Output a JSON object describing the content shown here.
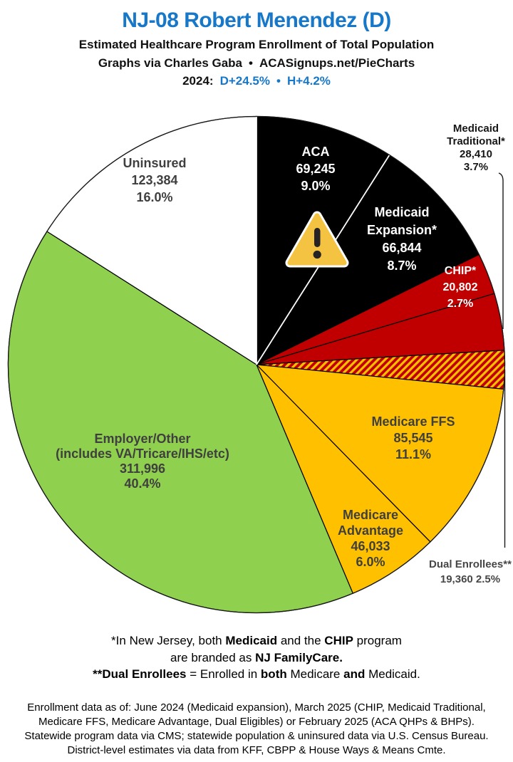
{
  "header": {
    "title": "NJ-08 Robert Menendez (D)",
    "subtitle": "Estimated Healthcare Program Enrollment of Total Population",
    "credit": {
      "text": "Graphs via Charles Gaba",
      "bullet": "•",
      "site": "ACASignups.net/PieCharts"
    },
    "partisan": {
      "year": "2024:",
      "d_lean": "D+24.5%",
      "bullet": "•",
      "h_lean": "H+4.2%"
    }
  },
  "colors": {
    "accent_blue": "#1777c8",
    "slice_black": "#000000",
    "slice_red": "#c00000",
    "slice_orange": "#ffc000",
    "slice_green": "#90d04f",
    "slice_white": "#ffffff",
    "hatch_base": "#c00000",
    "hatch_stripe": "#ffc000",
    "label_gray": "#3f3f3f",
    "warning_yellow": "#f5c342",
    "warning_dark": "#262327"
  },
  "chart_data": {
    "type": "pie",
    "title": "Estimated Healthcare Program Enrollment of Total Population",
    "district": "NJ-08",
    "representative": "Robert Menendez (D)",
    "start_angle_deg": 0,
    "direction": "clockwise",
    "legend_position": "on-slice",
    "slices": [
      {
        "key": "aca",
        "label": "ACA",
        "value": 69245,
        "pct": 9.0,
        "color": "#000000",
        "text_color": "#ffffff"
      },
      {
        "key": "medicaid_expansion",
        "label": "Medicaid Expansion*",
        "value": 66844,
        "pct": 8.7,
        "color": "#000000",
        "text_color": "#ffffff"
      },
      {
        "key": "chip",
        "label": "CHIP*",
        "value": 20802,
        "pct": 2.7,
        "color": "#c00000",
        "text_color": "#ffffff"
      },
      {
        "key": "medicaid_traditional",
        "label": "Medicaid Traditional*",
        "value": 28410,
        "pct": 3.7,
        "color": "#c00000",
        "text_color": "#161616"
      },
      {
        "key": "dual_enrollees",
        "label": "Dual Enrollees**",
        "value": 19360,
        "pct": 2.5,
        "color": "hatch",
        "text_color": "#474747"
      },
      {
        "key": "medicare_ffs",
        "label": "Medicare FFS",
        "value": 85545,
        "pct": 11.1,
        "color": "#ffc000",
        "text_color": "#3f3f3f"
      },
      {
        "key": "medicare_advantage",
        "label": "Medicare Advantage",
        "value": 46033,
        "pct": 6.0,
        "color": "#ffc000",
        "text_color": "#3f3f3f"
      },
      {
        "key": "employer_other",
        "label": "Employer/Other (includes VA/Tricare/IHS/etc)",
        "value": 311996,
        "pct": 40.4,
        "color": "#90d04f",
        "text_color": "#3f3f3f"
      },
      {
        "key": "uninsured",
        "label": "Uninsured",
        "value": 123384,
        "pct": 16.0,
        "color": "#ffffff",
        "text_color": "#3f3f3f"
      }
    ]
  },
  "labels": {
    "uninsured": {
      "lines": [
        "Uninsured",
        "123,384",
        "16.0%"
      ]
    },
    "aca": {
      "lines": [
        "ACA",
        "69,245",
        "9.0%"
      ]
    },
    "medexp": {
      "lines": [
        "Medicaid",
        "Expansion*",
        "66,844",
        "8.7%"
      ]
    },
    "medtrad": {
      "lines": [
        "Medicaid",
        "Traditional*",
        "28,410",
        "3.7%"
      ]
    },
    "chip": {
      "lines": [
        "CHIP*",
        "20,802",
        "2.7%"
      ]
    },
    "dual": {
      "lines": [
        "Dual Enrollees**",
        "19,360 2.5%"
      ]
    },
    "ffs": {
      "lines": [
        "Medicare FFS",
        "85,545",
        "11.1%"
      ]
    },
    "advantage": {
      "lines": [
        "Medicare",
        "Advantage",
        "46,033",
        "6.0%"
      ]
    },
    "employer": {
      "lines": [
        "Employer/Other",
        "(includes VA/Tricare/IHS/etc)",
        "311,996",
        "40.4%"
      ]
    }
  },
  "footnotes": {
    "line1": [
      "*In New Jersey, both ",
      "Medicaid",
      " and the ",
      "CHIP",
      " program"
    ],
    "line2": [
      "are branded as ",
      "NJ FamilyCare."
    ],
    "line3": [
      "**Dual Enrollees",
      " = Enrolled in ",
      "both",
      " Medicare ",
      "and",
      " Medicaid."
    ]
  },
  "fine_print": {
    "lines": [
      "Enrollment data as of: June 2024 (Medicaid expansion), March 2025 (CHIP, Medicaid Traditional,",
      "Medicare FFS, Medicare Advantage, Dual Eligibles) or February 2025 (ACA QHPs & BHPs).",
      "Statewide program data via CMS; statewide population & uninsured data via U.S. Census Bureau.",
      "District-level estimates via data from KFF, CBPP & House Ways & Means Cmte."
    ]
  }
}
